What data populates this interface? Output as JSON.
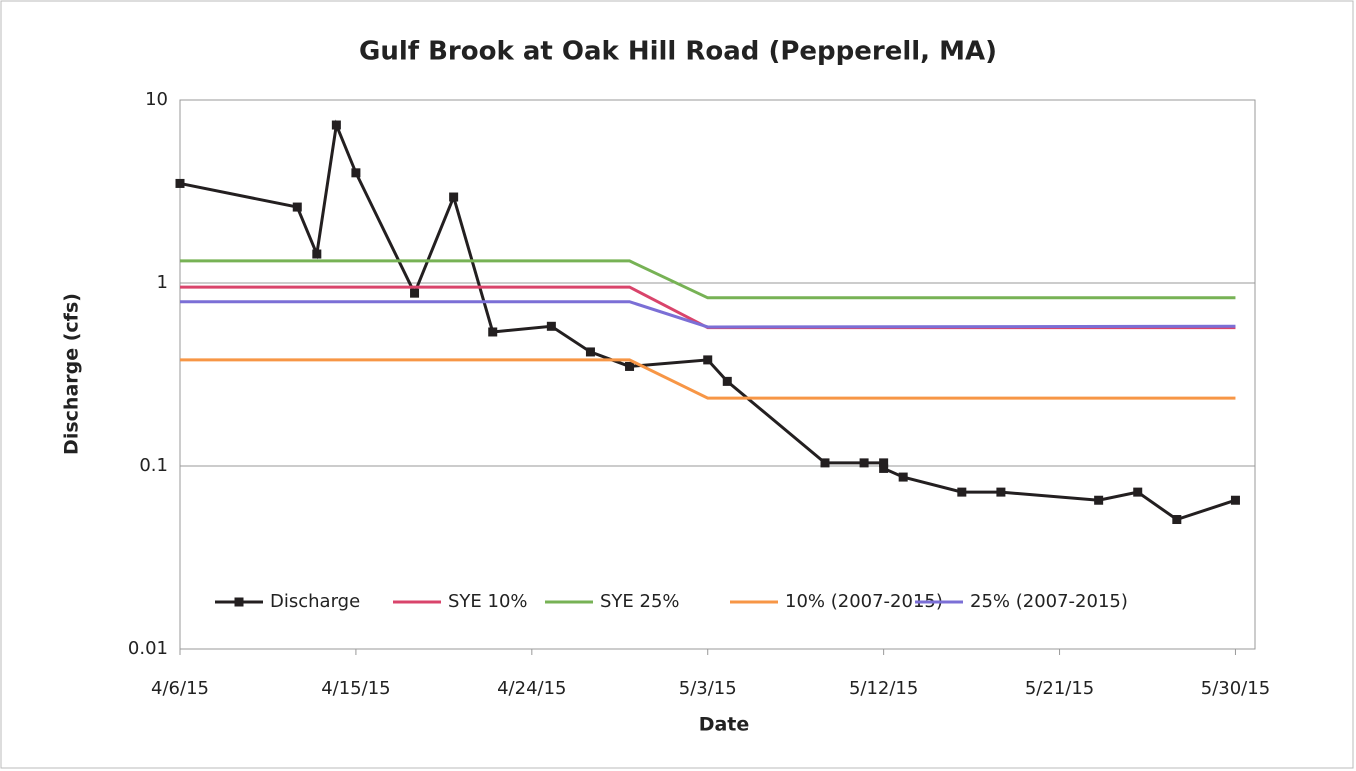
{
  "chart_data": {
    "type": "line",
    "title": "Gulf Brook at Oak Hill Road (Pepperell, MA)",
    "x_label": "Date",
    "y_label": "Discharge (cfs)",
    "log_y": true,
    "grid": true,
    "legend": "bottom",
    "xlim": [
      "4/6/15",
      "5/31/15"
    ],
    "xticks": [
      "4/6/15",
      "4/15/15",
      "4/24/15",
      "5/3/15",
      "5/12/15",
      "5/21/15",
      "5/30/15"
    ],
    "ylim": [
      0.01,
      10
    ],
    "yticks": [
      0.01,
      0.1,
      1,
      10
    ],
    "series": [
      {
        "name": "Discharge",
        "color": "#231f20",
        "markers": true,
        "x": [
          "4/6/15",
          "4/12/15",
          "4/13/15",
          "4/14/15",
          "4/15/15",
          "4/18/15",
          "4/20/15",
          "4/22/15",
          "4/25/15",
          "4/27/15",
          "4/29/15",
          "5/3/15",
          "5/4/15",
          "5/9/15",
          "5/11/15",
          "5/12/15",
          "5/12/15",
          "5/13/15",
          "5/16/15",
          "5/18/15",
          "5/23/15",
          "5/25/15",
          "5/27/15",
          "5/30/15"
        ],
        "values": [
          3.5,
          2.6,
          1.44,
          7.3,
          4.0,
          0.88,
          2.95,
          0.54,
          0.58,
          0.42,
          0.35,
          0.38,
          0.29,
          0.104,
          0.104,
          0.104,
          0.097,
          0.087,
          0.072,
          0.072,
          0.065,
          0.072,
          0.051,
          0.065
        ]
      },
      {
        "name": "SYE 10%",
        "color": "#d9446b",
        "x": [
          "4/6/15",
          "4/29/15",
          "5/3/15",
          "5/30/15"
        ],
        "values": [
          0.95,
          0.95,
          0.57,
          0.57
        ]
      },
      {
        "name": "SYE 25%",
        "color": "#77b255",
        "x": [
          "4/6/15",
          "4/29/15",
          "5/3/15",
          "5/30/15"
        ],
        "values": [
          1.32,
          1.32,
          0.83,
          0.83
        ]
      },
      {
        "name": "10% (2007-2015)",
        "color": "#f79646",
        "x": [
          "4/6/15",
          "4/29/15",
          "5/3/15",
          "5/30/15"
        ],
        "values": [
          0.38,
          0.38,
          0.235,
          0.235
        ]
      },
      {
        "name": "25% (2007-2015)",
        "color": "#7b6fd6",
        "x": [
          "4/6/15",
          "4/29/15",
          "5/3/15",
          "5/30/15"
        ],
        "values": [
          0.79,
          0.79,
          0.575,
          0.58
        ]
      }
    ]
  }
}
